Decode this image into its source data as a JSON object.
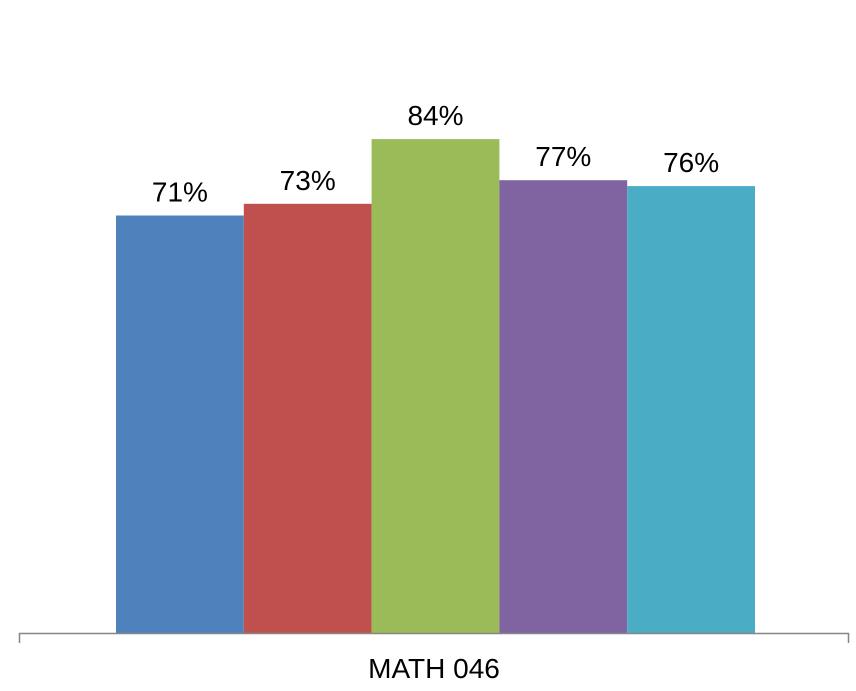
{
  "chart_data": {
    "type": "bar",
    "categories": [
      "MATH 046"
    ],
    "series": [
      {
        "values": [
          71
        ],
        "color": "#4F81BD",
        "label": "71%"
      },
      {
        "values": [
          73
        ],
        "color": "#C0504D",
        "label": "73%"
      },
      {
        "values": [
          84
        ],
        "color": "#9BBB59",
        "label": "84%"
      },
      {
        "values": [
          77
        ],
        "color": "#8064A2",
        "label": "77%"
      },
      {
        "values": [
          76
        ],
        "color": "#4BACC6",
        "label": "76%"
      }
    ],
    "ylim": [
      0,
      100
    ],
    "grid": false,
    "legend": "none"
  }
}
